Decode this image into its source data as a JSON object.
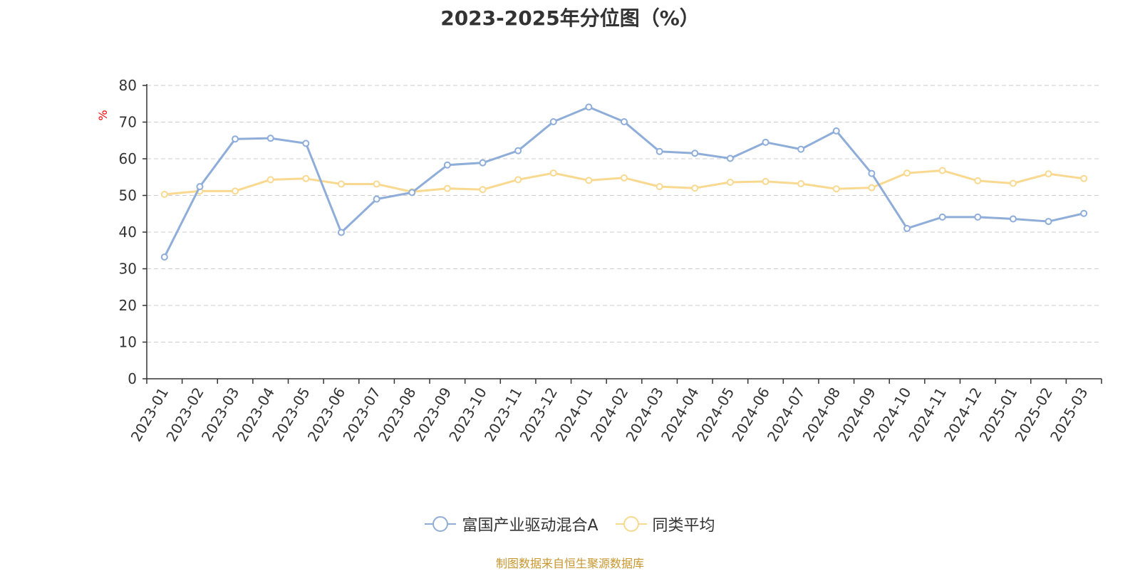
{
  "chart_data": {
    "type": "line",
    "title": "2023-2025年分位图（%）",
    "ylabel": "%",
    "xlabel": "",
    "ylim": [
      0,
      80
    ],
    "yticks": [
      0,
      10,
      20,
      30,
      40,
      50,
      60,
      70,
      80
    ],
    "grid": true,
    "legend_position": "bottom-center",
    "categories": [
      "2023-01",
      "2023-02",
      "2023-03",
      "2023-04",
      "2023-05",
      "2023-06",
      "2023-07",
      "2023-08",
      "2023-09",
      "2023-10",
      "2023-11",
      "2023-12",
      "2024-01",
      "2024-02",
      "2024-03",
      "2024-04",
      "2024-05",
      "2024-06",
      "2024-07",
      "2024-08",
      "2024-09",
      "2024-10",
      "2024-11",
      "2024-12",
      "2025-01",
      "2025-02",
      "2025-03"
    ],
    "series": [
      {
        "name": "富国产业驱动混合A",
        "color": "#8fadd9",
        "values": [
          33.2,
          52.4,
          65.4,
          65.6,
          64.2,
          39.9,
          49.0,
          50.8,
          58.3,
          58.9,
          62.2,
          70.1,
          74.1,
          70.1,
          62.0,
          61.5,
          60.1,
          64.5,
          62.6,
          67.6,
          56.0,
          41.0,
          44.1,
          44.1,
          43.6,
          42.9,
          45.1
        ]
      },
      {
        "name": "同类平均",
        "color": "#f9d990",
        "values": [
          50.3,
          51.2,
          51.2,
          54.3,
          54.6,
          53.1,
          53.1,
          51.0,
          51.9,
          51.6,
          54.3,
          56.1,
          54.1,
          54.8,
          52.4,
          52.0,
          53.6,
          53.8,
          53.2,
          51.8,
          52.1,
          56.1,
          56.8,
          54.0,
          53.3,
          55.9,
          54.6
        ]
      }
    ]
  },
  "footer": {
    "source": "制图数据来自恒生聚源数据库"
  },
  "colors": {
    "axis": "#333333",
    "grid": "#cccccc",
    "ylabel": "#ff0000",
    "source": "#c8962e"
  }
}
